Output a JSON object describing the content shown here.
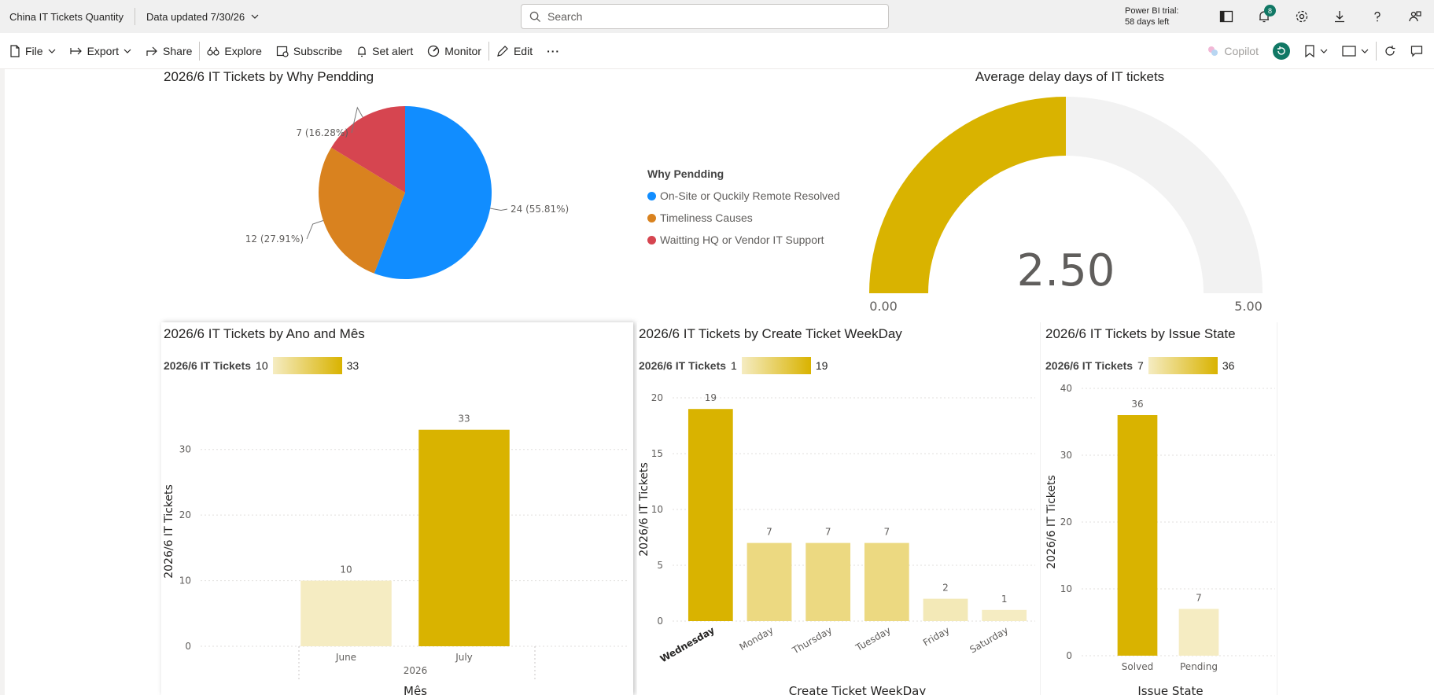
{
  "header": {
    "app_title": "China IT Tickets Quantity",
    "data_updated": "Data updated 7/30/26",
    "search_placeholder": "Search",
    "trial_line1": "Power BI trial:",
    "trial_line2": "58 days left",
    "notification_count": "8"
  },
  "toolbar": {
    "file": "File",
    "export": "Export",
    "share": "Share",
    "explore": "Explore",
    "subscribe": "Subscribe",
    "set_alert": "Set alert",
    "monitor": "Monitor",
    "edit": "Edit",
    "more": "···",
    "copilot": "Copilot"
  },
  "colors": {
    "gold": "#d9b300",
    "gold_light": "#e8d26b",
    "gold_pale": "#f5ecc2",
    "blue": "#118dff",
    "orange": "#d9821f",
    "red": "#d64550",
    "gauge_bg": "#f2f2f2"
  },
  "pie": {
    "title": "2026/6 IT Tickets by Why Pendding",
    "legend_title": "Why Pendding",
    "chart_data": {
      "type": "pie",
      "slices": [
        {
          "label": "On-Site or Quckily Remote Resolved",
          "value": 24,
          "data_label": "24 (55.81%)",
          "color": "#118dff"
        },
        {
          "label": "Timeliness Causes",
          "value": 12,
          "data_label": "12 (27.91%)",
          "color": "#d9821f"
        },
        {
          "label": "Waitting HQ or Vendor IT Support",
          "value": 7,
          "data_label": "7 (16.28%)",
          "color": "#d64550"
        }
      ]
    }
  },
  "gauge": {
    "title": "Average delay days of IT tickets",
    "chart_data": {
      "type": "gauge",
      "value": 2.5,
      "value_label": "2.50",
      "min": 0,
      "max": 5,
      "min_label": "0.00",
      "max_label": "5.00"
    }
  },
  "bar1": {
    "title": "2026/6 IT Tickets by Ano and Mês",
    "legend_label": "2026/6 IT Tickets",
    "legend_min": "10",
    "legend_max": "33",
    "chart_data": {
      "type": "bar",
      "categories": [
        "June",
        "July"
      ],
      "values": [
        10,
        33
      ],
      "data_labels": [
        "10",
        "33"
      ],
      "group_label": "2026",
      "xlabel": "Mês",
      "ylabel": "2026/6 IT Tickets",
      "yticks": [
        0,
        10,
        20,
        30
      ],
      "ylim": [
        0,
        35
      ]
    }
  },
  "bar2": {
    "title": "2026/6 IT Tickets by Create Ticket WeekDay",
    "legend_label": "2026/6 IT Tickets",
    "legend_min": "1",
    "legend_max": "19",
    "chart_data": {
      "type": "bar",
      "categories": [
        "Wednesday",
        "Monday",
        "Thursday",
        "Tuesday",
        "Friday",
        "Saturday"
      ],
      "values": [
        19,
        7,
        7,
        7,
        2,
        1
      ],
      "data_labels": [
        "19",
        "7",
        "7",
        "7",
        "2",
        "1"
      ],
      "xlabel": "Create Ticket WeekDay",
      "ylabel": "2026/6 IT Tickets",
      "yticks": [
        0,
        5,
        10,
        15,
        20
      ],
      "ylim": [
        0,
        20
      ]
    }
  },
  "bar3": {
    "title": "2026/6 IT Tickets by Issue State",
    "legend_label": "2026/6 IT Tickets",
    "legend_min": "7",
    "legend_max": "36",
    "chart_data": {
      "type": "bar",
      "categories": [
        "Solved",
        "Pending"
      ],
      "values": [
        36,
        7
      ],
      "data_labels": [
        "36",
        "7"
      ],
      "xlabel": "Issue State",
      "ylabel": "2026/6 IT Tickets",
      "yticks": [
        0,
        10,
        20,
        30,
        40
      ],
      "ylim": [
        0,
        40
      ]
    }
  }
}
